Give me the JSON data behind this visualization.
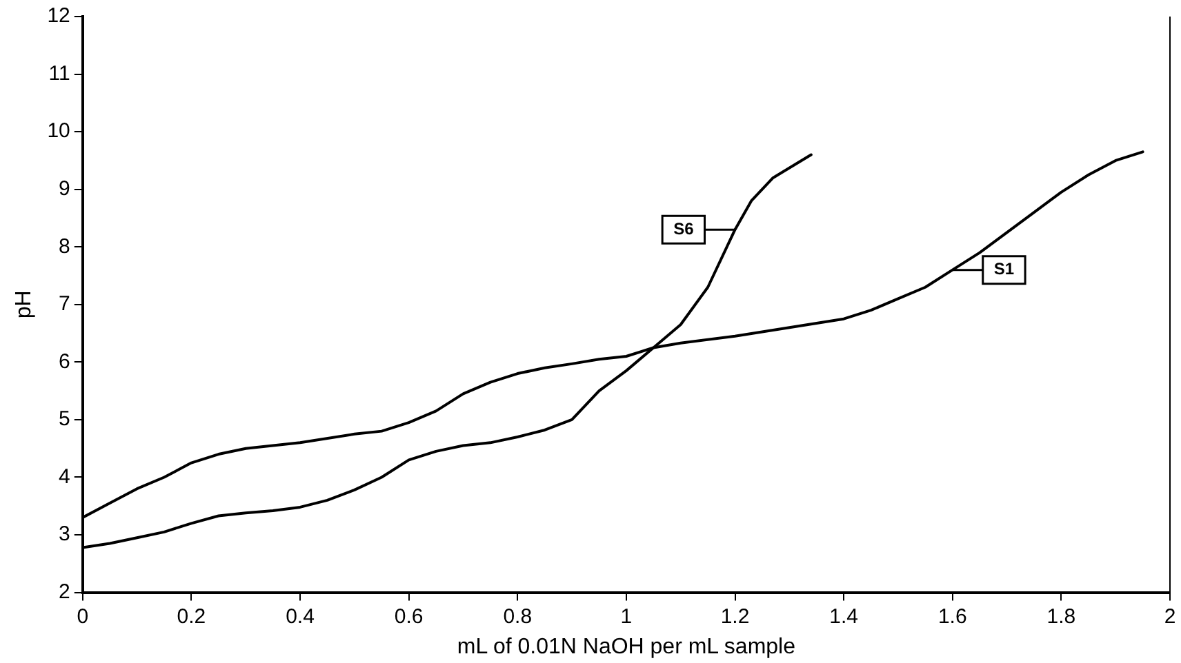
{
  "chart_data": {
    "type": "line",
    "xlabel": "mL of 0.01N NaOH per mL sample",
    "ylabel": "pH",
    "xlim": [
      0,
      2
    ],
    "xticks": [
      0,
      0.2,
      0.4,
      0.6,
      0.8,
      1,
      1.2,
      1.4,
      1.6,
      1.8,
      2
    ],
    "ylim": [
      2,
      12
    ],
    "yticks": [
      2,
      3,
      4,
      5,
      6,
      7,
      8,
      9,
      10,
      11,
      12
    ],
    "grid": false,
    "marker": "none",
    "line_style": "solid",
    "series": [
      {
        "name": "S1",
        "color": "#000000",
        "x": [
          0,
          0.05,
          0.1,
          0.15,
          0.2,
          0.25,
          0.3,
          0.4,
          0.5,
          0.55,
          0.6,
          0.65,
          0.7,
          0.75,
          0.8,
          0.85,
          0.9,
          0.95,
          1.0,
          1.05,
          1.1,
          1.2,
          1.3,
          1.4,
          1.45,
          1.5,
          1.55,
          1.6,
          1.65,
          1.7,
          1.75,
          1.8,
          1.85,
          1.9,
          1.95
        ],
        "values": [
          3.3,
          3.55,
          3.8,
          4.0,
          4.25,
          4.4,
          4.5,
          4.6,
          4.75,
          4.8,
          4.95,
          5.15,
          5.45,
          5.65,
          5.8,
          5.9,
          5.97,
          6.05,
          6.1,
          6.25,
          6.33,
          6.45,
          6.6,
          6.75,
          6.9,
          7.1,
          7.3,
          7.6,
          7.9,
          8.25,
          8.6,
          8.95,
          9.25,
          9.5,
          9.65
        ]
      },
      {
        "name": "S6",
        "color": "#000000",
        "x": [
          0,
          0.05,
          0.1,
          0.15,
          0.2,
          0.25,
          0.3,
          0.35,
          0.4,
          0.45,
          0.5,
          0.55,
          0.6,
          0.65,
          0.7,
          0.75,
          0.8,
          0.85,
          0.9,
          0.95,
          1.0,
          1.05,
          1.1,
          1.15,
          1.2,
          1.23,
          1.27,
          1.34
        ],
        "values": [
          2.78,
          2.85,
          2.95,
          3.05,
          3.2,
          3.33,
          3.38,
          3.42,
          3.48,
          3.6,
          3.78,
          4.0,
          4.3,
          4.45,
          4.55,
          4.6,
          4.7,
          4.82,
          5.0,
          5.5,
          5.85,
          6.25,
          6.65,
          7.3,
          8.3,
          8.8,
          9.2,
          9.6
        ]
      }
    ]
  }
}
